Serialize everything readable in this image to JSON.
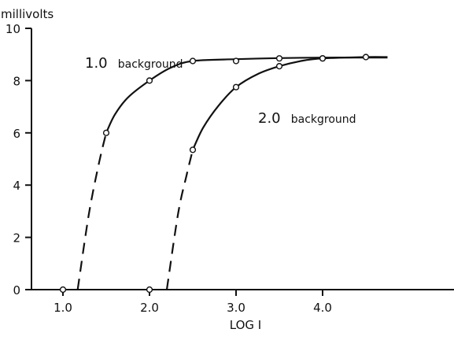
{
  "chart_data": {
    "type": "line",
    "ylabel": "millivolts",
    "xlabel": "LOG I",
    "xlim": [
      0.6,
      4.75
    ],
    "ylim": [
      0,
      10
    ],
    "x_ticks": [
      1.0,
      2.0,
      3.0,
      4.0
    ],
    "x_tick_labels": [
      "1.0",
      "2.0",
      "3.0",
      "4.0"
    ],
    "y_ticks": [
      0,
      2,
      4,
      6,
      8,
      10
    ],
    "y_tick_labels": [
      "0",
      "2",
      "4",
      "6",
      "8",
      "10"
    ],
    "grid": false,
    "series": [
      {
        "name": "1.0 background",
        "label_main": "1.0",
        "label_rest": "background",
        "x": [
          1.0,
          1.5,
          2.0,
          2.5,
          3.0,
          3.5,
          4.0
        ],
        "y": [
          0,
          6.0,
          8.0,
          8.75,
          8.75,
          8.85,
          8.85
        ],
        "solid_curve": [
          [
            1.5,
            6.0
          ],
          [
            1.6,
            6.7
          ],
          [
            1.75,
            7.35
          ],
          [
            2.0,
            8.0
          ],
          [
            2.25,
            8.5
          ],
          [
            2.5,
            8.75
          ],
          [
            3.0,
            8.82
          ],
          [
            3.5,
            8.86
          ],
          [
            4.0,
            8.88
          ],
          [
            4.5,
            8.88
          ],
          [
            4.75,
            8.88
          ]
        ],
        "dashed_curve": [
          [
            1.17,
            0
          ],
          [
            1.3,
            2.9
          ],
          [
            1.42,
            4.9
          ],
          [
            1.5,
            6.0
          ]
        ]
      },
      {
        "name": "2.0 background",
        "label_main": "2.0",
        "label_rest": "background",
        "x": [
          2.0,
          2.5,
          3.0,
          3.5,
          4.0,
          4.5
        ],
        "y": [
          0,
          5.35,
          7.75,
          8.55,
          8.85,
          8.9
        ],
        "solid_curve": [
          [
            2.5,
            5.35
          ],
          [
            2.62,
            6.2
          ],
          [
            2.8,
            7.05
          ],
          [
            3.0,
            7.75
          ],
          [
            3.25,
            8.25
          ],
          [
            3.5,
            8.55
          ],
          [
            3.75,
            8.75
          ],
          [
            4.0,
            8.85
          ],
          [
            4.5,
            8.9
          ],
          [
            4.75,
            8.9
          ]
        ],
        "dashed_curve": [
          [
            2.2,
            0
          ],
          [
            2.33,
            2.9
          ],
          [
            2.43,
            4.4
          ],
          [
            2.5,
            5.35
          ]
        ]
      }
    ]
  }
}
